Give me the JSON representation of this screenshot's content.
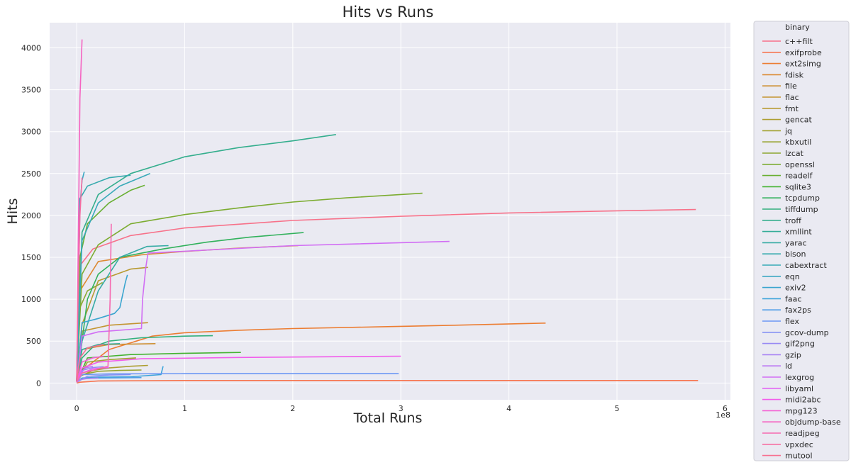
{
  "chart_data": {
    "type": "line",
    "title": "Hits vs Runs",
    "xlabel": "Total Runs",
    "ylabel": "Hits",
    "x_unit": "runs",
    "x_offset_label": "1e8",
    "xlim": [
      -25000000,
      605000000
    ],
    "ylim": [
      -200,
      4300
    ],
    "x_ticks": [
      0,
      100000000,
      200000000,
      300000000,
      400000000,
      500000000,
      600000000
    ],
    "x_tick_labels": [
      "0",
      "1",
      "2",
      "3",
      "4",
      "5",
      "6"
    ],
    "y_ticks": [
      0,
      500,
      1000,
      1500,
      2000,
      2500,
      3000,
      3500,
      4000
    ],
    "y_tick_labels": [
      "0",
      "500",
      "1000",
      "1500",
      "2000",
      "2500",
      "3000",
      "3500",
      "4000"
    ],
    "grid": true,
    "background": "#eaeaf2",
    "legend": {
      "title": "binary",
      "placement": "outside-right"
    },
    "series": [
      {
        "name": "c++filt",
        "color": "#f77189",
        "x": [
          0,
          3000000,
          15000000,
          50000000,
          100000000,
          200000000,
          300000000,
          400000000,
          500000000,
          573000000
        ],
        "y": [
          20,
          1400,
          1600,
          1760,
          1850,
          1940,
          1990,
          2030,
          2055,
          2070
        ]
      },
      {
        "name": "exifprobe",
        "color": "#f7754f",
        "x": [
          0,
          3000000,
          20000000,
          100000000,
          300000000,
          575000000
        ],
        "y": [
          0,
          10,
          25,
          30,
          30,
          30
        ]
      },
      {
        "name": "ext2simg",
        "color": "#ec7d32",
        "x": [
          0,
          5000000,
          30000000,
          70000000,
          100000000,
          150000000,
          200000000,
          280000000,
          350000000,
          434000000
        ],
        "y": [
          20,
          150,
          400,
          560,
          600,
          630,
          650,
          670,
          690,
          715
        ]
      },
      {
        "name": "fdisk",
        "color": "#dc8932",
        "x": [
          0,
          3000000,
          20000000,
          60000000,
          100000000,
          150000000,
          205000000
        ],
        "y": [
          20,
          1100,
          1450,
          1530,
          1570,
          1610,
          1640
        ]
      },
      {
        "name": "file",
        "color": "#ce8f31",
        "x": [
          0,
          5000000,
          30000000,
          73000000
        ],
        "y": [
          20,
          400,
          460,
          470
        ]
      },
      {
        "name": "flac",
        "color": "#c39531",
        "x": [
          0,
          5000000,
          30000000,
          66000000
        ],
        "y": [
          20,
          620,
          690,
          720
        ]
      },
      {
        "name": "fmt",
        "color": "#b89a31",
        "x": [
          0,
          5000000,
          20000000,
          50000000,
          66000000
        ],
        "y": [
          30,
          700,
          1220,
          1360,
          1380
        ]
      },
      {
        "name": "gencat",
        "color": "#ad9e31",
        "x": [
          0,
          3000000,
          15000000,
          30000000,
          50000000,
          66000000
        ],
        "y": [
          10,
          80,
          150,
          180,
          200,
          210
        ]
      },
      {
        "name": "jq",
        "color": "#a2a231",
        "x": [
          0,
          10000000,
          30000000,
          55000000
        ],
        "y": [
          10,
          250,
          280,
          300
        ]
      },
      {
        "name": "kbxutil",
        "color": "#98a531",
        "x": [
          0,
          5000000,
          20000000,
          40000000,
          60000000
        ],
        "y": [
          20,
          100,
          140,
          150,
          155
        ]
      },
      {
        "name": "lzcat",
        "color": "#8ca831",
        "x": [
          0,
          3000000,
          10000000,
          24000000
        ],
        "y": [
          20,
          900,
          1100,
          1200
        ]
      },
      {
        "name": "openssl",
        "color": "#7cac31",
        "x": [
          0,
          5000000,
          20000000,
          50000000,
          100000000,
          150000000,
          200000000,
          250000000,
          320000000
        ],
        "y": [
          20,
          1300,
          1650,
          1900,
          2010,
          2090,
          2160,
          2210,
          2265
        ]
      },
      {
        "name": "readelf",
        "color": "#68af31",
        "x": [
          0,
          3000000,
          10000000,
          30000000,
          50000000,
          63000000
        ],
        "y": [
          20,
          1500,
          1900,
          2150,
          2300,
          2360
        ]
      },
      {
        "name": "sqlite3",
        "color": "#45b331",
        "x": [
          0,
          10000000,
          50000000,
          100000000,
          152000000
        ],
        "y": [
          10,
          300,
          340,
          355,
          365
        ]
      },
      {
        "name": "tcpdump",
        "color": "#32b15c",
        "x": [
          0,
          5000000,
          10000000,
          20000000,
          40000000,
          80000000,
          120000000,
          160000000,
          210000000
        ],
        "y": [
          20,
          500,
          1000,
          1300,
          1500,
          1600,
          1680,
          1740,
          1795
        ]
      },
      {
        "name": "tiffdump",
        "color": "#33b07c",
        "x": [
          0,
          5000000,
          15000000,
          30000000,
          60000000,
          100000000,
          126000000
        ],
        "y": [
          20,
          300,
          430,
          500,
          540,
          560,
          565
        ]
      },
      {
        "name": "troff",
        "color": "#34ae8d",
        "x": [
          0,
          5000000,
          20000000,
          50000000,
          100000000,
          150000000,
          200000000,
          240000000
        ],
        "y": [
          20,
          1800,
          2250,
          2500,
          2700,
          2810,
          2890,
          2965
        ]
      },
      {
        "name": "xmllint",
        "color": "#35ad99",
        "x": [
          0,
          5000000,
          20000000,
          40000000
        ],
        "y": [
          20,
          400,
          460,
          470
        ]
      },
      {
        "name": "yarac",
        "color": "#36aba4",
        "x": [
          0,
          5000000,
          10000000,
          20000000,
          40000000,
          65000000,
          85000000
        ],
        "y": [
          20,
          500,
          700,
          1100,
          1500,
          1630,
          1640
        ]
      },
      {
        "name": "bison",
        "color": "#37aaae",
        "x": [
          0,
          3000000,
          10000000,
          30000000,
          50000000
        ],
        "y": [
          20,
          2200,
          2350,
          2450,
          2480
        ]
      },
      {
        "name": "cabextract",
        "color": "#38a9b8",
        "x": [
          0,
          5000000,
          20000000,
          40000000,
          68000000
        ],
        "y": [
          20,
          1700,
          2150,
          2350,
          2500
        ]
      },
      {
        "name": "eqn",
        "color": "#39a7c3",
        "x": [
          0,
          3000000,
          5000000,
          7000000
        ],
        "y": [
          20,
          2100,
          2420,
          2520
        ]
      },
      {
        "name": "exiv2",
        "color": "#3aa5cf",
        "x": [
          0,
          5000000,
          20000000,
          35000000,
          40000000,
          45000000,
          47000000
        ],
        "y": [
          20,
          720,
          770,
          830,
          900,
          1200,
          1290
        ]
      },
      {
        "name": "faac",
        "color": "#3ba3da",
        "x": [
          0,
          5000000,
          20000000,
          50000000,
          78000000,
          80000000
        ],
        "y": [
          20,
          60,
          70,
          75,
          100,
          200
        ]
      },
      {
        "name": "fax2ps",
        "color": "#509ee8",
        "x": [
          0,
          5000000,
          20000000,
          60000000
        ],
        "y": [
          20,
          50,
          60,
          65
        ]
      },
      {
        "name": "flex",
        "color": "#6d98f4",
        "x": [
          0,
          5000000,
          30000000,
          100000000,
          200000000,
          298000000
        ],
        "y": [
          20,
          100,
          110,
          112,
          112,
          112
        ]
      },
      {
        "name": "gcov-dump",
        "color": "#8490f4",
        "x": [
          0,
          10000000,
          30000000,
          50000000
        ],
        "y": [
          10,
          80,
          95,
          100
        ]
      },
      {
        "name": "gif2png",
        "color": "#9789f4",
        "x": [
          0,
          5000000,
          15000000,
          25000000
        ],
        "y": [
          10,
          150,
          185,
          195
        ]
      },
      {
        "name": "gzip",
        "color": "#a782f4",
        "x": [
          0,
          3000000,
          10000000,
          20000000
        ],
        "y": [
          10,
          40,
          55,
          60
        ]
      },
      {
        "name": "ld",
        "color": "#bb78f4",
        "x": [
          0,
          3000000,
          8000000,
          15000000
        ],
        "y": [
          10,
          100,
          180,
          200
        ]
      },
      {
        "name": "lexgrog",
        "color": "#d16ef4",
        "x": [
          0,
          5000000,
          20000000,
          60000000,
          61000000,
          64000000,
          66000000,
          200000000,
          345000000
        ],
        "y": [
          20,
          560,
          610,
          650,
          1000,
          1380,
          1550,
          1640,
          1690
        ]
      },
      {
        "name": "libyaml",
        "color": "#e263f4",
        "x": [
          0,
          5000000,
          15000000,
          30000000
        ],
        "y": [
          10,
          120,
          170,
          185
        ]
      },
      {
        "name": "midi2abc",
        "color": "#f25ceb",
        "x": [
          0,
          5000000,
          20000000,
          60000000,
          150000000,
          300000000
        ],
        "y": [
          10,
          180,
          250,
          290,
          305,
          320
        ]
      },
      {
        "name": "mpg123",
        "color": "#f45fd3",
        "x": [
          0,
          5000000,
          15000000,
          25000000
        ],
        "y": [
          10,
          250,
          300,
          320
        ]
      },
      {
        "name": "objdump-base",
        "color": "#f564c1",
        "x": [
          0,
          2000000,
          3000000,
          5000000
        ],
        "y": [
          30,
          2200,
          3400,
          4100
        ]
      },
      {
        "name": "readjpeg",
        "color": "#f669b0",
        "x": [
          0,
          5000000,
          20000000,
          29000000,
          31000000,
          32000000
        ],
        "y": [
          10,
          120,
          170,
          200,
          1000,
          1900
        ]
      },
      {
        "name": "vpxdec",
        "color": "#f66da1",
        "x": [
          0,
          1000000,
          3000000,
          5000000
        ],
        "y": [
          20,
          800,
          2000,
          2450
        ]
      },
      {
        "name": "mutool",
        "color": "#f77090",
        "x": [
          0,
          3000000,
          10000000,
          25000000
        ],
        "y": [
          20,
          300,
          420,
          460
        ]
      }
    ]
  }
}
